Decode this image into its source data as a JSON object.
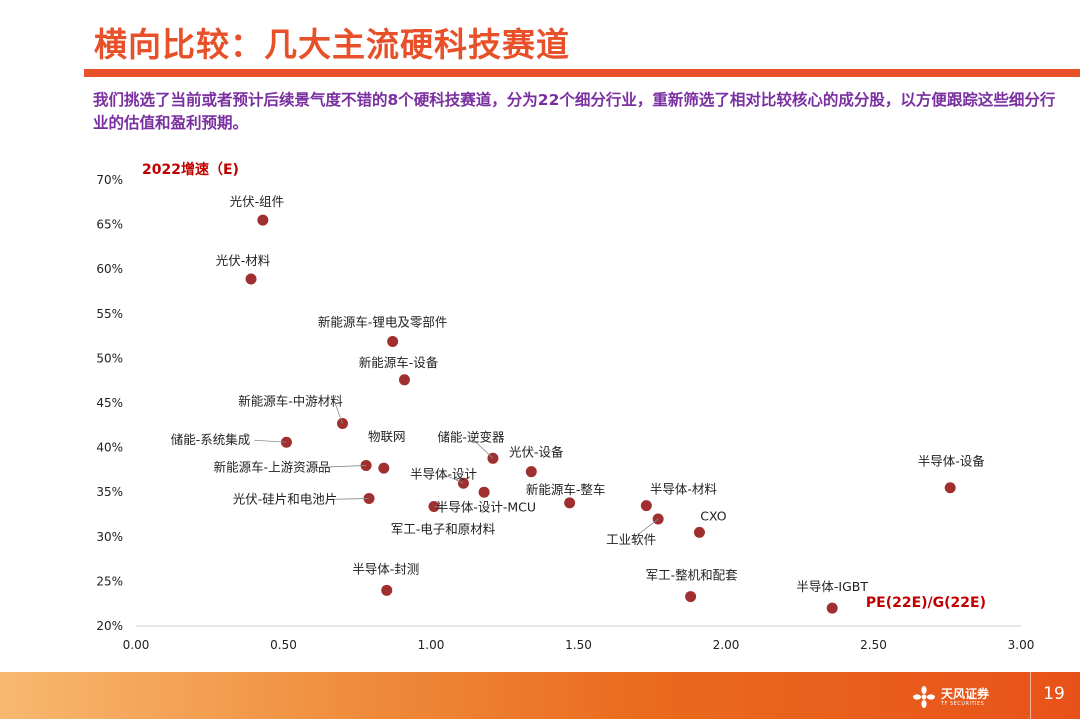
{
  "page": {
    "title": "横向比较：几大主流硬科技赛道",
    "description": "我们挑选了当前或者预计后续景气度不错的8个硬科技赛道，分为22个细分行业，重新筛选了相对比较核心的成分股，以方便跟踪这些细分行业的估值和盈利预期。",
    "page_number": "19",
    "logo_cn": "天风证券",
    "logo_en": "TF SECURITIES"
  },
  "colors": {
    "accent": "#E8502A",
    "text_purple": "#7A30A0",
    "axis_title": "#C00000",
    "point": "#A03030"
  },
  "chart_data": {
    "type": "scatter",
    "title": "",
    "xlabel": "PE(22E)/G(22E)",
    "ylabel": "2022增速（E)",
    "xlim": [
      0,
      3
    ],
    "ylim": [
      0.2,
      0.7
    ],
    "xticks": [
      "0.00",
      "0.50",
      "1.00",
      "1.50",
      "2.00",
      "2.50",
      "3.00"
    ],
    "yticks": [
      "20%",
      "25%",
      "30%",
      "35%",
      "40%",
      "45%",
      "50%",
      "55%",
      "60%",
      "65%",
      "70%"
    ],
    "grid": false,
    "points": [
      {
        "label": "光伏-组件",
        "x": 0.43,
        "y": 0.655
      },
      {
        "label": "光伏-材料",
        "x": 0.39,
        "y": 0.589
      },
      {
        "label": "新能源车-锂电及零部件",
        "x": 0.87,
        "y": 0.519
      },
      {
        "label": "新能源车-设备",
        "x": 0.91,
        "y": 0.476
      },
      {
        "label": "新能源车-中游材料",
        "x": 0.7,
        "y": 0.427
      },
      {
        "label": "储能-系统集成",
        "x": 0.51,
        "y": 0.406
      },
      {
        "label": "新能源车-上游资源品",
        "x": 0.78,
        "y": 0.38
      },
      {
        "label": "物联网",
        "x": 0.84,
        "y": 0.377
      },
      {
        "label": "储能-逆变器",
        "x": 1.21,
        "y": 0.388
      },
      {
        "label": "光伏-设备",
        "x": 1.34,
        "y": 0.373
      },
      {
        "label": "半导体-设计",
        "x": 1.11,
        "y": 0.36
      },
      {
        "label": "",
        "x": 1.18,
        "y": 0.35
      },
      {
        "label": "光伏-硅片和电池片",
        "x": 0.79,
        "y": 0.343
      },
      {
        "label": "半导体-设计-MCU",
        "x": 1.01,
        "y": 0.334
      },
      {
        "label": "军工-电子和原材料",
        "x": 1.01,
        "y": 0.334
      },
      {
        "label": "新能源车-整车",
        "x": 1.47,
        "y": 0.338
      },
      {
        "label": "半导体-材料",
        "x": 1.73,
        "y": 0.335
      },
      {
        "label": "工业软件",
        "x": 1.77,
        "y": 0.32
      },
      {
        "label": "CXO",
        "x": 1.91,
        "y": 0.305
      },
      {
        "label": "半导体-设备",
        "x": 2.76,
        "y": 0.355
      },
      {
        "label": "半导体-封测",
        "x": 0.85,
        "y": 0.24
      },
      {
        "label": "军工-整机和配套",
        "x": 1.88,
        "y": 0.233
      },
      {
        "label": "半导体-IGBT",
        "x": 2.36,
        "y": 0.22
      }
    ]
  }
}
